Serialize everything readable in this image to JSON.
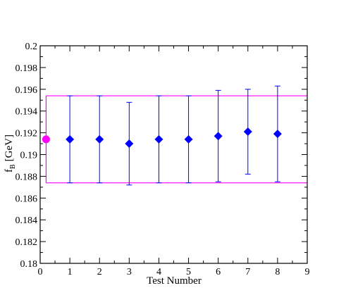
{
  "chart_data": {
    "type": "scatter",
    "xlabel": "Test Number",
    "ylabel_main": "f",
    "ylabel_sub": "B",
    "ylabel_unit": "[GeV]",
    "xlim": [
      0,
      9
    ],
    "ylim": [
      0.18,
      0.2
    ],
    "x_ticks": [
      0,
      1,
      2,
      3,
      4,
      5,
      6,
      7,
      8,
      9
    ],
    "x_tick_labels": [
      "0",
      "1",
      "2",
      "3",
      "4",
      "5",
      "6",
      "7",
      "8",
      "9"
    ],
    "y_ticks": [
      0.18,
      0.182,
      0.184,
      0.186,
      0.188,
      0.19,
      0.192,
      0.194,
      0.196,
      0.198,
      0.2
    ],
    "y_tick_labels": [
      "0.18",
      "0.182",
      "0.184",
      "0.186",
      "0.188",
      "0.19",
      "0.192",
      "0.194",
      "0.196",
      "0.198",
      "0.2"
    ],
    "grid": false,
    "series": [
      {
        "marker": "diamond",
        "color": "#0000ff",
        "points": [
          {
            "x": 1,
            "y": 0.1914,
            "lo": 0.1874,
            "hi": 0.1954
          },
          {
            "x": 2,
            "y": 0.1914,
            "lo": 0.1874,
            "hi": 0.1954
          },
          {
            "x": 3,
            "y": 0.191,
            "lo": 0.1872,
            "hi": 0.1948
          },
          {
            "x": 4,
            "y": 0.1914,
            "lo": 0.1874,
            "hi": 0.1954
          },
          {
            "x": 5,
            "y": 0.1914,
            "lo": 0.1874,
            "hi": 0.1954
          },
          {
            "x": 6,
            "y": 0.1917,
            "lo": 0.1875,
            "hi": 0.1959
          },
          {
            "x": 7,
            "y": 0.1921,
            "lo": 0.1882,
            "hi": 0.196
          },
          {
            "x": 8,
            "y": 0.1919,
            "lo": 0.1875,
            "hi": 0.1963
          }
        ]
      },
      {
        "marker": "circle",
        "color": "#ff00ff",
        "points": [
          {
            "x": 0.2,
            "y": 0.1914
          }
        ]
      }
    ],
    "band": {
      "color": "#ff00ff",
      "x_start": 0.2,
      "x_end": 9,
      "lo": 0.1874,
      "hi": 0.1954
    }
  }
}
